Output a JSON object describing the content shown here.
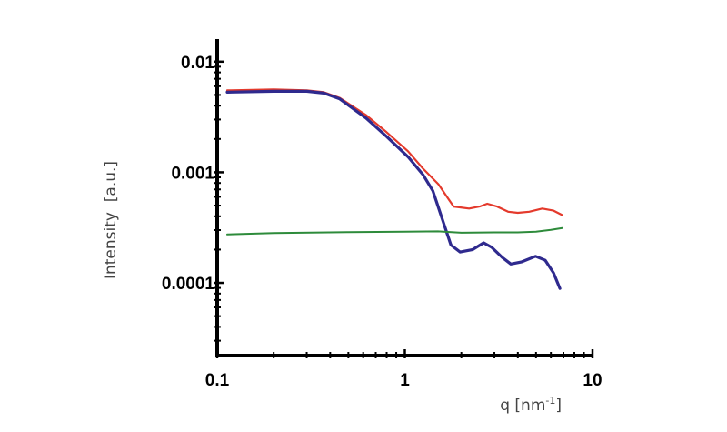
{
  "chart_data": {
    "type": "line",
    "title": "",
    "xlabel": "q [nm",
    "xlabel_sup": "-1",
    "xlabel_close": "]",
    "ylabel": "Intensity  [a.u.]",
    "xscale": "log",
    "yscale": "log",
    "xlim": [
      0.1,
      10
    ],
    "ylim": [
      2.2e-05,
      0.016
    ],
    "grid": false,
    "legend": "none",
    "x_ticks": [
      {
        "v": 0.1,
        "label": "0.1"
      },
      {
        "v": 1,
        "label": "1"
      },
      {
        "v": 10,
        "label": "10"
      }
    ],
    "y_ticks": [
      {
        "v": 0.01,
        "label": "0.01"
      },
      {
        "v": 0.001,
        "label": "0.001"
      },
      {
        "v": 0.0001,
        "label": "0.0001"
      }
    ],
    "series": [
      {
        "color": "#e43a2c",
        "width": 2.2,
        "x": [
          0.113,
          0.2,
          0.3,
          0.37,
          0.45,
          0.62,
          0.8,
          1.04,
          1.25,
          1.51,
          1.7,
          1.82,
          2.2,
          2.5,
          2.75,
          3.1,
          3.55,
          4.0,
          4.6,
          5.4,
          6.2,
          6.9
        ],
        "y": [
          0.0055,
          0.0056,
          0.0055,
          0.0053,
          0.0047,
          0.0033,
          0.0023,
          0.00155,
          0.00108,
          0.00078,
          0.00058,
          0.00049,
          0.00047,
          0.00049,
          0.00052,
          0.00049,
          0.00044,
          0.00043,
          0.00044,
          0.00047,
          0.00045,
          0.00041
        ]
      },
      {
        "color": "#2f2a8e",
        "width": 3.2,
        "x": [
          0.113,
          0.2,
          0.3,
          0.37,
          0.45,
          0.62,
          0.8,
          1.04,
          1.25,
          1.41,
          1.55,
          1.76,
          1.97,
          2.3,
          2.63,
          2.9,
          3.3,
          3.67,
          4.2,
          4.97,
          5.6,
          6.2,
          6.7
        ],
        "y": [
          0.0053,
          0.0054,
          0.0054,
          0.0052,
          0.0046,
          0.0031,
          0.0021,
          0.00138,
          0.00095,
          0.00068,
          0.00042,
          0.00022,
          0.00019,
          0.0002,
          0.00023,
          0.00021,
          0.00017,
          0.000148,
          0.000155,
          0.000174,
          0.00016,
          0.000123,
          8.9e-05
        ]
      },
      {
        "color": "#2e8b3b",
        "width": 2,
        "x": [
          0.113,
          0.2,
          0.5,
          1.0,
          1.5,
          2.0,
          3.0,
          4.0,
          5.0,
          6.0,
          6.9
        ],
        "y": [
          0.000274,
          0.000282,
          0.000288,
          0.00029,
          0.000292,
          0.000284,
          0.000286,
          0.000286,
          0.00029,
          0.000302,
          0.000313
        ]
      }
    ]
  }
}
